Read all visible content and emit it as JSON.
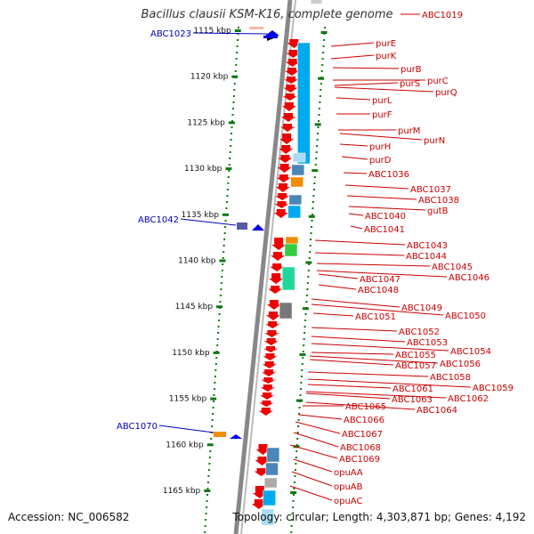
{
  "title": "Bacillus clausii KSM-K16, complete genome",
  "accession": "Accession: NC_006582",
  "topology": "Topology: circular; Length: 4,303,871 bp; Genes: 4,192",
  "colors": {
    "forward_arrow": "#0000ee",
    "reverse_arrow": "#ee0000",
    "label_red": "#cc0000",
    "label_blue": "#0000bb",
    "tick_green": "#117711",
    "backbone": "#888888",
    "cog_blue": "#00aaee",
    "cog_light_blue": "#a8dcf4",
    "cog_orange": "#f08c00",
    "cog_green": "#33cc44",
    "cog_teal": "#22d899",
    "cog_steel": "#4a86b8",
    "cog_grey": "#777777",
    "cog_purple": "#5a5aa0"
  },
  "scale_ticks": [
    "1115 kbp",
    "1120 kbp",
    "1125 kbp",
    "1130 kbp",
    "1135 kbp",
    "1140 kbp",
    "1145 kbp",
    "1150 kbp",
    "1155 kbp",
    "1160 kbp",
    "1165 kbp"
  ],
  "left_labels": [
    "ABC1023",
    "ABC1042",
    "ABC1070"
  ],
  "right_labels": [
    "ABC1019",
    "purE",
    "purK",
    "purB",
    "purC",
    "purS",
    "purQ",
    "purL",
    "purF",
    "purM",
    "purN",
    "purH",
    "purD",
    "ABC1036",
    "ABC1037",
    "ABC1038",
    "gutB",
    "ABC1040",
    "ABC1041",
    "ABC1043",
    "ABC1044",
    "ABC1045",
    "ABC1046",
    "ABC1047",
    "ABC1048",
    "ABC1049",
    "ABC1050",
    "ABC1051",
    "ABC1052",
    "ABC1053",
    "ABC1054",
    "ABC1055",
    "ABC1057",
    "ABC1056",
    "ABC1058",
    "ABC1059",
    "ABC1061",
    "ABC1063",
    "ABC1062",
    "ABC1064",
    "ABC1065",
    "ABC1066",
    "ABC1067",
    "ABC1068",
    "ABC1069",
    "opuAA",
    "opuAB",
    "opuAC"
  ]
}
